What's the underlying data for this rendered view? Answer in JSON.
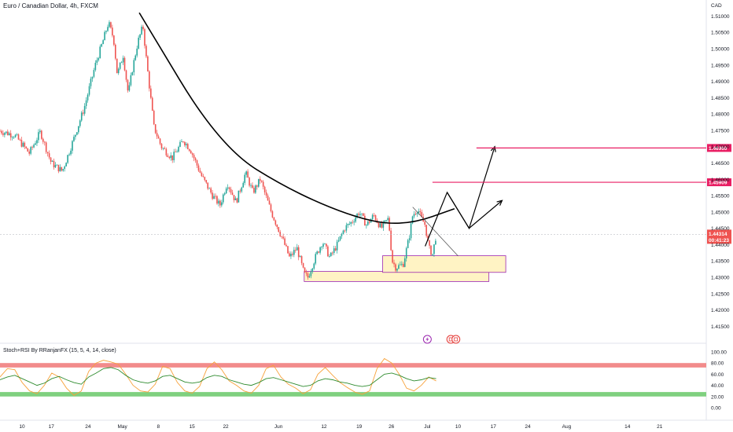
{
  "header": {
    "title": "Euro / Canadian Dollar, 4h, FXCM"
  },
  "indicator": {
    "title": "Stoch+RSI By RRanjanFX (15, 5, 4, 14, close)"
  },
  "colors": {
    "up_candle": "#26a69a",
    "down_candle": "#ef5350",
    "curve": "#000000",
    "level_line": "#e91e63",
    "zone_fill": "#fff3c4",
    "zone_border": "#9c27b0",
    "stoch_line": "#f7a23b",
    "rsi_line": "#2e8b2e",
    "overbought_band": "#f28b8b",
    "oversold_band": "#7fd07f",
    "current_price_tag": "#ef5350"
  },
  "chart_data": {
    "type": "candlestick",
    "symbol": "EURCAD",
    "currency_label": "CAD",
    "interval": "4h",
    "y_ticks": [
      "1.51000",
      "1.50500",
      "1.50000",
      "1.49500",
      "1.49000",
      "1.48500",
      "1.48000",
      "1.47500",
      "1.47000",
      "1.46500",
      "1.46000",
      "1.45500",
      "1.45000",
      "1.44500",
      "1.44000",
      "1.43500",
      "1.43000",
      "1.42500",
      "1.42000",
      "1.41500"
    ],
    "x_ticks": [
      {
        "label": "10",
        "t": 0.03
      },
      {
        "label": "17",
        "t": 0.07
      },
      {
        "label": "24",
        "t": 0.12
      },
      {
        "label": "May",
        "t": 0.167
      },
      {
        "label": "8",
        "t": 0.216
      },
      {
        "label": "15",
        "t": 0.262
      },
      {
        "label": "22",
        "t": 0.308
      },
      {
        "label": "Jun",
        "t": 0.38
      },
      {
        "label": "12",
        "t": 0.442
      },
      {
        "label": "19",
        "t": 0.49
      },
      {
        "label": "26",
        "t": 0.534
      },
      {
        "label": "Jul",
        "t": 0.583
      },
      {
        "label": "10",
        "t": 0.625
      },
      {
        "label": "17",
        "t": 0.673
      },
      {
        "label": "24",
        "t": 0.72
      },
      {
        "label": "Aug",
        "t": 0.773
      },
      {
        "label": "14",
        "t": 0.856
      },
      {
        "label": "21",
        "t": 0.9
      }
    ],
    "price_path": [
      [
        0.0,
        1.4748
      ],
      [
        0.02,
        1.4735
      ],
      [
        0.04,
        1.468
      ],
      [
        0.055,
        1.4745
      ],
      [
        0.07,
        1.465
      ],
      [
        0.085,
        1.4625
      ],
      [
        0.1,
        1.472
      ],
      [
        0.115,
        1.482
      ],
      [
        0.13,
        1.495
      ],
      [
        0.14,
        1.502
      ],
      [
        0.148,
        1.508
      ],
      [
        0.155,
        1.503
      ],
      [
        0.16,
        1.492
      ],
      [
        0.168,
        1.498
      ],
      [
        0.175,
        1.486
      ],
      [
        0.18,
        1.493
      ],
      [
        0.188,
        1.502
      ],
      [
        0.195,
        1.507
      ],
      [
        0.2,
        1.496
      ],
      [
        0.21,
        1.476
      ],
      [
        0.22,
        1.47
      ],
      [
        0.235,
        1.4665
      ],
      [
        0.25,
        1.472
      ],
      [
        0.26,
        1.469
      ],
      [
        0.275,
        1.461
      ],
      [
        0.29,
        1.455
      ],
      [
        0.3,
        1.452
      ],
      [
        0.31,
        1.459
      ],
      [
        0.322,
        1.453
      ],
      [
        0.335,
        1.462
      ],
      [
        0.345,
        1.456
      ],
      [
        0.355,
        1.46
      ],
      [
        0.37,
        1.45
      ],
      [
        0.385,
        1.442
      ],
      [
        0.395,
        1.436
      ],
      [
        0.405,
        1.439
      ],
      [
        0.415,
        1.431
      ],
      [
        0.42,
        1.43
      ],
      [
        0.43,
        1.436
      ],
      [
        0.44,
        1.441
      ],
      [
        0.45,
        1.436
      ],
      [
        0.46,
        1.44
      ],
      [
        0.47,
        1.445
      ],
      [
        0.48,
        1.447
      ],
      [
        0.49,
        1.45
      ],
      [
        0.5,
        1.446
      ],
      [
        0.51,
        1.449
      ],
      [
        0.52,
        1.445
      ],
      [
        0.53,
        1.448
      ],
      [
        0.535,
        1.435
      ],
      [
        0.54,
        1.433
      ],
      [
        0.55,
        1.434
      ],
      [
        0.558,
        1.442
      ],
      [
        0.563,
        1.449
      ],
      [
        0.57,
        1.451
      ],
      [
        0.575,
        1.448
      ],
      [
        0.58,
        1.446
      ],
      [
        0.585,
        1.439
      ],
      [
        0.59,
        1.437
      ],
      [
        0.595,
        1.443
      ]
    ],
    "curve_points": [
      [
        0.19,
        1.511
      ],
      [
        0.3,
        1.47
      ],
      [
        0.4,
        1.456
      ],
      [
        0.5,
        1.447
      ],
      [
        0.56,
        1.4462
      ],
      [
        0.62,
        1.451
      ]
    ],
    "projection_arrow_1": [
      [
        0.58,
        1.4395
      ],
      [
        0.61,
        1.456
      ],
      [
        0.64,
        1.445
      ],
      [
        0.675,
        1.47
      ]
    ],
    "projection_arrow_2": [
      [
        0.61,
        1.456
      ],
      [
        0.64,
        1.445
      ],
      [
        0.685,
        1.4535
      ]
    ],
    "trendline": [
      [
        0.563,
        1.4515
      ],
      [
        0.625,
        1.4365
      ]
    ],
    "levels": [
      {
        "price": 1.4696,
        "label": "1.46960",
        "x_start": 0.65
      },
      {
        "price": 1.45909,
        "label": "1.45909",
        "x_start": 0.59
      }
    ],
    "zones": [
      {
        "x0": 0.415,
        "x1": 0.667,
        "y_top": 1.4318,
        "y_bottom": 1.4287
      },
      {
        "x0": 0.522,
        "x1": 0.69,
        "y_top": 1.4366,
        "y_bottom": 1.4315
      }
    ],
    "current_price": {
      "label": "1.44314",
      "countdown": "00:41:23",
      "price": 1.44314
    },
    "event_markers": [
      {
        "icon": "lightning-icon",
        "x": 0.583
      },
      {
        "icon": "flag-icon",
        "x": 0.615
      },
      {
        "icon": "flag-icon",
        "x": 0.622
      }
    ],
    "indicator_chart": {
      "y_ticks": [
        "100.00",
        "80.00",
        "60.00",
        "40.00",
        "20.00",
        "0.00"
      ],
      "overbought_band": [
        72,
        80
      ],
      "oversold_band": [
        20,
        28
      ],
      "stoch_values": [
        55,
        70,
        68,
        45,
        30,
        25,
        40,
        62,
        55,
        35,
        22,
        30,
        65,
        80,
        85,
        82,
        78,
        60,
        40,
        30,
        28,
        42,
        74,
        70,
        45,
        30,
        26,
        38,
        70,
        82,
        68,
        48,
        40,
        30,
        26,
        40,
        70,
        76,
        55,
        42,
        35,
        25,
        32,
        60,
        72,
        58,
        45,
        36,
        28,
        24,
        30,
        70,
        88,
        80,
        60,
        35,
        30,
        40,
        55,
        48
      ],
      "rsi_values": [
        50,
        55,
        58,
        52,
        46,
        40,
        44,
        52,
        56,
        50,
        45,
        42,
        55,
        62,
        70,
        72,
        68,
        58,
        50,
        46,
        44,
        48,
        56,
        58,
        52,
        46,
        44,
        46,
        54,
        58,
        56,
        50,
        46,
        42,
        40,
        45,
        52,
        54,
        50,
        46,
        42,
        38,
        40,
        48,
        52,
        50,
        46,
        44,
        40,
        38,
        40,
        50,
        60,
        62,
        58,
        52,
        48,
        50,
        54,
        52
      ]
    }
  }
}
